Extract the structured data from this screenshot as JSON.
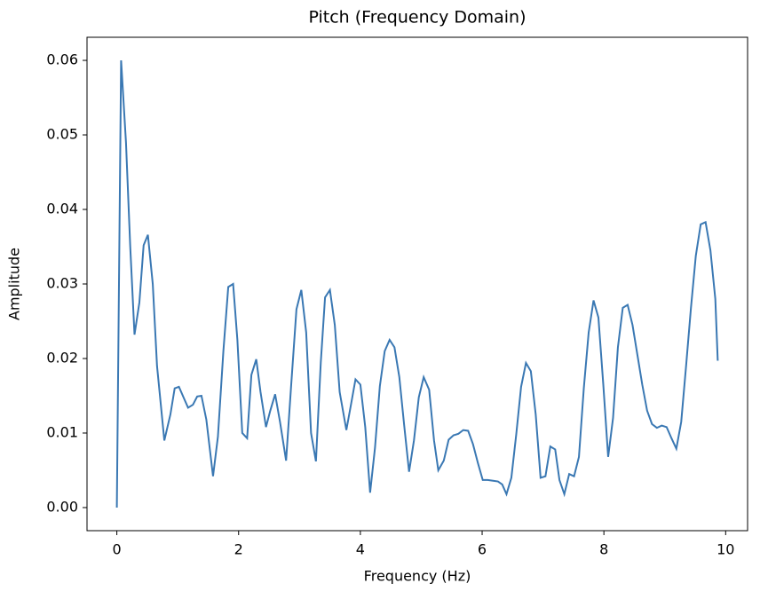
{
  "chart_data": {
    "type": "line",
    "title": "Pitch (Frequency Domain)",
    "x_label": "Frequency (Hz)",
    "y_label": "Amplitude",
    "x": [
      0,
      0.07,
      0.15,
      0.22,
      0.29,
      0.37,
      0.44,
      0.51,
      0.59,
      0.66,
      0.78,
      0.88,
      0.95,
      1.02,
      1.1,
      1.17,
      1.25,
      1.32,
      1.39,
      1.47,
      1.58,
      1.66,
      1.75,
      1.83,
      1.91,
      1.98,
      2.06,
      2.14,
      2.21,
      2.29,
      2.36,
      2.45,
      2.52,
      2.6,
      2.68,
      2.78,
      2.86,
      2.95,
      3.03,
      3.11,
      3.19,
      3.27,
      3.35,
      3.42,
      3.5,
      3.58,
      3.66,
      3.77,
      3.85,
      3.92,
      4.0,
      4.08,
      4.16,
      4.24,
      4.32,
      4.4,
      4.48,
      4.56,
      4.64,
      4.72,
      4.8,
      4.88,
      4.96,
      5.04,
      5.13,
      5.21,
      5.28,
      5.37,
      5.45,
      5.53,
      5.61,
      5.69,
      5.77,
      5.85,
      5.93,
      6.01,
      6.09,
      6.18,
      6.26,
      6.33,
      6.4,
      6.48,
      6.56,
      6.64,
      6.72,
      6.8,
      6.88,
      6.96,
      7.04,
      7.12,
      7.2,
      7.27,
      7.35,
      7.43,
      7.51,
      7.59,
      7.67,
      7.75,
      7.83,
      7.91,
      7.99,
      8.07,
      8.15,
      8.23,
      8.31,
      8.39,
      8.47,
      8.55,
      8.63,
      8.71,
      8.79,
      8.87,
      8.95,
      9.03,
      9.11,
      9.19,
      9.27,
      9.35,
      9.43,
      9.51,
      9.59,
      9.67,
      9.75,
      9.83,
      9.87
    ],
    "series": [
      {
        "name": "Pitch",
        "color": "#3a78b3",
        "values": [
          0,
          0.06,
          0.049,
          0.035,
          0.0232,
          0.0275,
          0.0352,
          0.0366,
          0.03,
          0.019,
          0.009,
          0.0125,
          0.016,
          0.0162,
          0.0147,
          0.0134,
          0.0138,
          0.0149,
          0.015,
          0.0118,
          0.0042,
          0.0095,
          0.021,
          0.0296,
          0.03,
          0.0225,
          0.01,
          0.0093,
          0.0178,
          0.0199,
          0.0155,
          0.0108,
          0.013,
          0.0152,
          0.0115,
          0.0063,
          0.016,
          0.0266,
          0.0292,
          0.0235,
          0.01,
          0.0062,
          0.0195,
          0.0282,
          0.0292,
          0.0245,
          0.0155,
          0.0104,
          0.014,
          0.0172,
          0.0165,
          0.0108,
          0.002,
          0.008,
          0.0163,
          0.021,
          0.0225,
          0.0215,
          0.0175,
          0.011,
          0.0048,
          0.009,
          0.0148,
          0.0175,
          0.0158,
          0.009,
          0.005,
          0.0063,
          0.0091,
          0.0097,
          0.0099,
          0.0104,
          0.0103,
          0.0085,
          0.006,
          0.0037,
          0.0037,
          0.0036,
          0.0035,
          0.0031,
          0.0018,
          0.004,
          0.0098,
          0.0162,
          0.0194,
          0.0183,
          0.0125,
          0.004,
          0.0042,
          0.0082,
          0.0078,
          0.0037,
          0.0018,
          0.0045,
          0.0042,
          0.0068,
          0.016,
          0.0235,
          0.0278,
          0.0255,
          0.0165,
          0.0068,
          0.012,
          0.0215,
          0.0268,
          0.0272,
          0.0245,
          0.0205,
          0.0165,
          0.013,
          0.0112,
          0.0107,
          0.011,
          0.0108,
          0.0093,
          0.0079,
          0.0115,
          0.019,
          0.0268,
          0.0338,
          0.038,
          0.0383,
          0.0345,
          0.028,
          0.0197
        ]
      }
    ],
    "xlim": [
      -0.49,
      10.36
    ],
    "ylim": [
      -0.0031,
      0.0631
    ],
    "xticks": [
      0,
      2,
      4,
      6,
      8,
      10
    ],
    "yticks": [
      {
        "value": 0,
        "label": "0.00"
      },
      0.01,
      0.02,
      0.03,
      0.04,
      0.05,
      0.06
    ]
  }
}
